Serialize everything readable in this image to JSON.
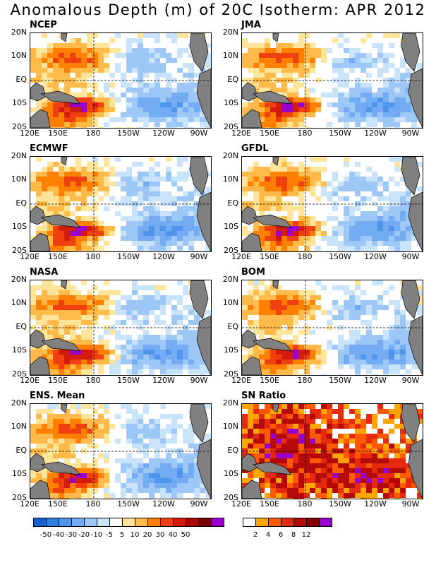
{
  "title": "Anomalous Depth (m) of 20C Isotherm: APR 2012",
  "lat_labels": [
    "20N",
    "10N",
    "EQ",
    "10S",
    "20S"
  ],
  "lon_labels": [
    "120E",
    "150E",
    "180",
    "150W",
    "120W",
    "90W"
  ],
  "anomaly_colorbar": {
    "labels": [
      "-50",
      "-40",
      "-30",
      "-20",
      "-10",
      "-5",
      "5",
      "10",
      "20",
      "30",
      "40",
      "50"
    ],
    "colors": [
      "#1560d0",
      "#2f7fe0",
      "#4f95ec",
      "#73acf2",
      "#9dc7f7",
      "#c9e3fb",
      "#ffffff",
      "#ffe59a",
      "#ffba4a",
      "#ff8000",
      "#f04010",
      "#d41a0c",
      "#a80a0a",
      "#7a0000",
      "#9900cc"
    ]
  },
  "sn_colorbar": {
    "labels": [
      "2",
      "4",
      "6",
      "8",
      "12"
    ],
    "colors": [
      "#ffffff",
      "#ffa500",
      "#ff5a00",
      "#e52a10",
      "#b40a0a",
      "#880000",
      "#9900cc"
    ]
  },
  "land_color": "#808080",
  "chart_data": [
    {
      "type": "heatmap",
      "title": "NCEP",
      "variable": "20C isotherm depth anomaly (m)",
      "month": "APR 2012",
      "regions": [
        {
          "area": "western Pacific 10N",
          "value": 30
        },
        {
          "area": "western Pacific 10S near 160E",
          "value": 50
        },
        {
          "area": "eastern Pacific south of equator",
          "value": -30
        }
      ]
    },
    {
      "type": "heatmap",
      "title": "JMA",
      "variable": "20C isotherm depth anomaly (m)",
      "month": "APR 2012",
      "regions": [
        {
          "area": "western Pacific 10N",
          "value": 30
        },
        {
          "area": "western Pacific 10S near 160E",
          "value": 50
        },
        {
          "area": "eastern Pacific south of equator",
          "value": -30
        }
      ]
    },
    {
      "type": "heatmap",
      "title": "ECMWF",
      "variable": "20C isotherm depth anomaly (m)",
      "month": "APR 2012",
      "regions": [
        {
          "area": "western Pacific 10N",
          "value": 40
        },
        {
          "area": "western Pacific 10S near 160E",
          "value": 50
        },
        {
          "area": "eastern Pacific south of equator",
          "value": -30
        }
      ]
    },
    {
      "type": "heatmap",
      "title": "GFDL",
      "variable": "20C isotherm depth anomaly (m)",
      "month": "APR 2012",
      "regions": [
        {
          "area": "western Pacific 10N",
          "value": 40
        },
        {
          "area": "western Pacific 10S near 160E",
          "value": 50
        },
        {
          "area": "eastern Pacific south of equator",
          "value": -30
        }
      ]
    },
    {
      "type": "heatmap",
      "title": "NASA",
      "variable": "20C isotherm depth anomaly (m)",
      "month": "APR 2012",
      "regions": [
        {
          "area": "western Pacific 10N",
          "value": 30
        },
        {
          "area": "western Pacific 10S near 160E",
          "value": 40
        },
        {
          "area": "eastern Pacific south of equator",
          "value": -30
        }
      ]
    },
    {
      "type": "heatmap",
      "title": "BOM",
      "variable": "20C isotherm depth anomaly (m)",
      "month": "APR 2012",
      "regions": [
        {
          "area": "western Pacific 10N",
          "value": 30
        },
        {
          "area": "western Pacific 10S near 160E",
          "value": 50
        },
        {
          "area": "eastern Pacific south of equator",
          "value": -30
        }
      ]
    },
    {
      "type": "heatmap",
      "title": "ENS. Mean",
      "variable": "20C isotherm depth anomaly (m)",
      "month": "APR 2012",
      "regions": [
        {
          "area": "western Pacific 10N",
          "value": 40
        },
        {
          "area": "western Pacific 10S near 160E",
          "value": 40
        },
        {
          "area": "eastern Pacific south of equator",
          "value": -30
        }
      ]
    },
    {
      "type": "heatmap",
      "title": "SN Ratio",
      "variable": "signal-to-noise ratio",
      "month": "APR 2012",
      "regions": [
        {
          "area": "western Pacific",
          "value": 12
        },
        {
          "area": "central-eastern Pacific 10S",
          "value": 12
        },
        {
          "area": "equatorial 180",
          "value": 2
        }
      ]
    }
  ]
}
